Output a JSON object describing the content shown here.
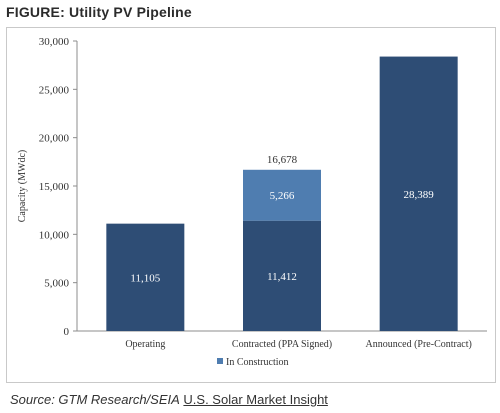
{
  "figure_title": "FIGURE: Utility PV Pipeline",
  "source": {
    "prefix": "Source: GTM Research/SEIA",
    "link_text": "U.S. Solar Market Insight"
  },
  "chart_data": {
    "type": "bar",
    "stacked": true,
    "title": "",
    "xlabel": "",
    "ylabel": "Capacity (MWdc)",
    "ylim": [
      0,
      30000
    ],
    "yticks": [
      0,
      5000,
      10000,
      15000,
      20000,
      25000,
      30000
    ],
    "ytick_labels": [
      "0",
      "5,000",
      "10,000",
      "15,000",
      "20,000",
      "25,000",
      "30,000"
    ],
    "grid": false,
    "categories": [
      "Operating",
      "Contracted (PPA Signed)",
      "Announced (Pre-Contract)"
    ],
    "series": [
      {
        "values": [
          11105,
          11412,
          28389
        ],
        "labels": [
          "11,105",
          "11,412",
          "28,389"
        ],
        "color": "#2e4d75"
      },
      {
        "name": "In Construction",
        "values": [
          0,
          5266,
          0
        ],
        "labels": [
          "",
          "5,266",
          ""
        ],
        "color": "#4f7db0"
      }
    ],
    "totals": [
      {
        "category_index": 1,
        "label": "16,678"
      }
    ],
    "legend": {
      "position": "bottom",
      "entries": [
        "In Construction"
      ]
    }
  }
}
